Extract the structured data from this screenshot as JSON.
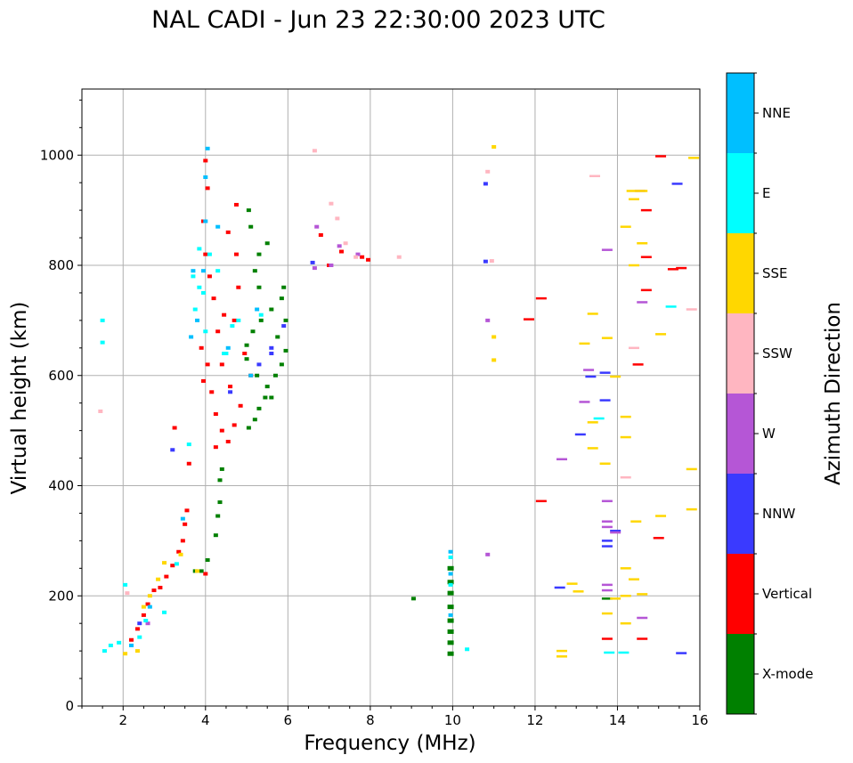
{
  "chart_data": {
    "type": "scatter",
    "title": "NAL CADI - Jun 23 22:30:00 2023 UTC",
    "xlabel": "Frequency (MHz)",
    "ylabel": "Virtual height (km)",
    "xlim": [
      1,
      16
    ],
    "ylim": [
      0,
      1120
    ],
    "xticks": [
      2,
      4,
      6,
      8,
      10,
      12,
      14,
      16
    ],
    "yticks": [
      0,
      200,
      400,
      600,
      800,
      1000
    ],
    "grid": true,
    "colorbar": {
      "label": "Azimuth Direction",
      "categories": [
        "X-mode",
        "Vertical",
        "NNW",
        "W",
        "SSW",
        "SSE",
        "E",
        "NNE"
      ],
      "colors": [
        "#008000",
        "#ff0000",
        "#3a3aff",
        "#b556d6",
        "#ffb6c1",
        "#ffd700",
        "#00ffff",
        "#00bfff"
      ]
    },
    "series": [
      {
        "name": "X-mode",
        "points": [
          [
            3.9,
            245
          ],
          [
            3.75,
            245
          ],
          [
            4.05,
            265
          ],
          [
            4.25,
            310
          ],
          [
            4.3,
            345
          ],
          [
            4.35,
            370
          ],
          [
            4.35,
            410
          ],
          [
            4.4,
            430
          ],
          [
            5.05,
            505
          ],
          [
            5.2,
            520
          ],
          [
            5.3,
            540
          ],
          [
            5.45,
            560
          ],
          [
            5.5,
            580
          ],
          [
            5.7,
            600
          ],
          [
            5.85,
            620
          ],
          [
            5.95,
            645
          ],
          [
            5.0,
            655
          ],
          [
            5.15,
            680
          ],
          [
            5.35,
            700
          ],
          [
            5.6,
            720
          ],
          [
            5.85,
            740
          ],
          [
            5.9,
            760
          ],
          [
            5.2,
            790
          ],
          [
            5.3,
            820
          ],
          [
            5.5,
            840
          ],
          [
            5.1,
            870
          ],
          [
            5.05,
            900
          ],
          [
            5.25,
            600
          ],
          [
            5.0,
            630
          ],
          [
            5.75,
            670
          ],
          [
            5.95,
            700
          ],
          [
            5.3,
            760
          ],
          [
            5.6,
            560
          ],
          [
            9.05,
            195
          ],
          [
            9.95,
            95
          ],
          [
            9.95,
            115
          ],
          [
            9.95,
            135
          ],
          [
            9.95,
            155
          ],
          [
            9.95,
            180
          ],
          [
            9.95,
            205
          ],
          [
            9.95,
            225
          ],
          [
            9.95,
            250
          ],
          [
            13.75,
            195
          ]
        ]
      },
      {
        "name": "Vertical",
        "points": [
          [
            2.2,
            120
          ],
          [
            2.35,
            140
          ],
          [
            2.5,
            165
          ],
          [
            2.6,
            185
          ],
          [
            2.75,
            210
          ],
          [
            2.9,
            215
          ],
          [
            3.05,
            235
          ],
          [
            3.2,
            255
          ],
          [
            3.35,
            280
          ],
          [
            3.45,
            300
          ],
          [
            3.5,
            330
          ],
          [
            3.55,
            355
          ],
          [
            3.6,
            440
          ],
          [
            3.25,
            505
          ],
          [
            4.0,
            240
          ],
          [
            3.95,
            590
          ],
          [
            4.05,
            620
          ],
          [
            3.9,
            650
          ],
          [
            4.15,
            570
          ],
          [
            4.25,
            530
          ],
          [
            4.4,
            500
          ],
          [
            4.55,
            480
          ],
          [
            4.7,
            510
          ],
          [
            4.85,
            545
          ],
          [
            4.3,
            680
          ],
          [
            4.45,
            710
          ],
          [
            4.2,
            740
          ],
          [
            4.1,
            780
          ],
          [
            4.0,
            820
          ],
          [
            3.95,
            880
          ],
          [
            4.05,
            940
          ],
          [
            4.0,
            990
          ],
          [
            4.55,
            860
          ],
          [
            4.75,
            820
          ],
          [
            4.8,
            760
          ],
          [
            4.7,
            700
          ],
          [
            4.95,
            640
          ],
          [
            5.1,
            600
          ],
          [
            4.4,
            620
          ],
          [
            4.6,
            580
          ],
          [
            4.25,
            470
          ],
          [
            4.75,
            910
          ],
          [
            6.8,
            855
          ],
          [
            7.3,
            825
          ],
          [
            7.8,
            815
          ],
          [
            7.95,
            810
          ],
          [
            7.0,
            800
          ],
          [
            12.15,
            372
          ],
          [
            12.15,
            740
          ],
          [
            11.85,
            702
          ],
          [
            13.75,
            122
          ],
          [
            14.6,
            122
          ],
          [
            15.0,
            305
          ],
          [
            14.5,
            620
          ],
          [
            14.7,
            815
          ],
          [
            14.7,
            900
          ],
          [
            14.7,
            755
          ],
          [
            15.05,
            998
          ],
          [
            15.35,
            793
          ],
          [
            15.55,
            795
          ]
        ]
      },
      {
        "name": "NNW",
        "points": [
          [
            3.2,
            465
          ],
          [
            2.4,
            150
          ],
          [
            4.6,
            570
          ],
          [
            5.3,
            620
          ],
          [
            5.6,
            650
          ],
          [
            5.6,
            640
          ],
          [
            5.9,
            690
          ],
          [
            6.6,
            805
          ],
          [
            10.8,
            948
          ],
          [
            10.8,
            807
          ],
          [
            12.6,
            215
          ],
          [
            13.1,
            493
          ],
          [
            13.35,
            598
          ],
          [
            13.7,
            605
          ],
          [
            13.7,
            555
          ],
          [
            13.75,
            300
          ],
          [
            13.75,
            290
          ],
          [
            13.95,
            318
          ],
          [
            15.45,
            948
          ],
          [
            15.55,
            96
          ]
        ]
      },
      {
        "name": "W",
        "points": [
          [
            2.6,
            150
          ],
          [
            6.65,
            795
          ],
          [
            6.7,
            870
          ],
          [
            7.05,
            800
          ],
          [
            7.25,
            835
          ],
          [
            7.7,
            820
          ],
          [
            10.85,
            275
          ],
          [
            10.85,
            700
          ],
          [
            12.65,
            448
          ],
          [
            13.3,
            610
          ],
          [
            13.2,
            552
          ],
          [
            13.75,
            372
          ],
          [
            13.75,
            335
          ],
          [
            13.75,
            325
          ],
          [
            13.75,
            220
          ],
          [
            13.75,
            210
          ],
          [
            13.95,
            315
          ],
          [
            14.55,
            935
          ],
          [
            14.6,
            733
          ],
          [
            14.6,
            160
          ],
          [
            13.75,
            828
          ]
        ]
      },
      {
        "name": "SSW",
        "points": [
          [
            1.45,
            535
          ],
          [
            2.1,
            205
          ],
          [
            6.65,
            1008
          ],
          [
            7.05,
            912
          ],
          [
            7.2,
            885
          ],
          [
            7.4,
            840
          ],
          [
            7.65,
            815
          ],
          [
            8.7,
            815
          ],
          [
            10.85,
            970
          ],
          [
            10.95,
            808
          ],
          [
            13.45,
            962
          ],
          [
            14.2,
            415
          ],
          [
            14.4,
            650
          ],
          [
            15.8,
            720
          ]
        ]
      },
      {
        "name": "SSE",
        "points": [
          [
            2.05,
            95
          ],
          [
            2.35,
            100
          ],
          [
            2.5,
            180
          ],
          [
            2.65,
            200
          ],
          [
            2.85,
            230
          ],
          [
            3.0,
            260
          ],
          [
            3.4,
            275
          ],
          [
            3.8,
            245
          ],
          [
            11.0,
            1015
          ],
          [
            11.0,
            670
          ],
          [
            11.0,
            628
          ],
          [
            12.65,
            90
          ],
          [
            12.65,
            100
          ],
          [
            12.9,
            222
          ],
          [
            13.05,
            208
          ],
          [
            13.2,
            658
          ],
          [
            13.4,
            712
          ],
          [
            13.4,
            515
          ],
          [
            13.4,
            468
          ],
          [
            13.75,
            668
          ],
          [
            13.7,
            440
          ],
          [
            13.75,
            168
          ],
          [
            13.95,
            598
          ],
          [
            13.95,
            195
          ],
          [
            14.2,
            200
          ],
          [
            14.2,
            150
          ],
          [
            14.2,
            250
          ],
          [
            14.2,
            488
          ],
          [
            14.2,
            525
          ],
          [
            14.2,
            870
          ],
          [
            14.35,
            935
          ],
          [
            14.4,
            920
          ],
          [
            14.4,
            800
          ],
          [
            14.4,
            230
          ],
          [
            14.45,
            335
          ],
          [
            14.6,
            840
          ],
          [
            14.6,
            935
          ],
          [
            14.6,
            203
          ],
          [
            15.05,
            675
          ],
          [
            15.05,
            345
          ],
          [
            15.8,
            430
          ],
          [
            15.8,
            357
          ],
          [
            15.85,
            995
          ]
        ]
      },
      {
        "name": "E",
        "points": [
          [
            1.5,
            700
          ],
          [
            1.5,
            660
          ],
          [
            1.55,
            100
          ],
          [
            1.7,
            110
          ],
          [
            1.9,
            115
          ],
          [
            2.05,
            220
          ],
          [
            2.4,
            125
          ],
          [
            2.55,
            155
          ],
          [
            3.0,
            170
          ],
          [
            3.3,
            258
          ],
          [
            3.6,
            475
          ],
          [
            3.7,
            780
          ],
          [
            3.75,
            720
          ],
          [
            3.85,
            830
          ],
          [
            3.85,
            760
          ],
          [
            3.95,
            750
          ],
          [
            4.1,
            820
          ],
          [
            4.0,
            680
          ],
          [
            4.3,
            790
          ],
          [
            4.45,
            640
          ],
          [
            4.65,
            690
          ],
          [
            4.8,
            700
          ],
          [
            4.5,
            640
          ],
          [
            5.35,
            710
          ],
          [
            9.95,
            220
          ],
          [
            9.95,
            270
          ],
          [
            10.35,
            103
          ],
          [
            13.55,
            522
          ],
          [
            13.8,
            97
          ],
          [
            14.15,
            97
          ],
          [
            15.3,
            725
          ]
        ]
      },
      {
        "name": "NNE",
        "points": [
          [
            2.2,
            110
          ],
          [
            2.65,
            180
          ],
          [
            3.45,
            340
          ],
          [
            3.65,
            670
          ],
          [
            3.7,
            790
          ],
          [
            3.8,
            700
          ],
          [
            3.95,
            790
          ],
          [
            4.0,
            880
          ],
          [
            4.0,
            960
          ],
          [
            4.05,
            1012
          ],
          [
            4.3,
            870
          ],
          [
            4.55,
            650
          ],
          [
            5.1,
            600
          ],
          [
            5.25,
            720
          ],
          [
            9.95,
            280
          ],
          [
            9.95,
            240
          ],
          [
            9.95,
            165
          ]
        ]
      }
    ]
  }
}
